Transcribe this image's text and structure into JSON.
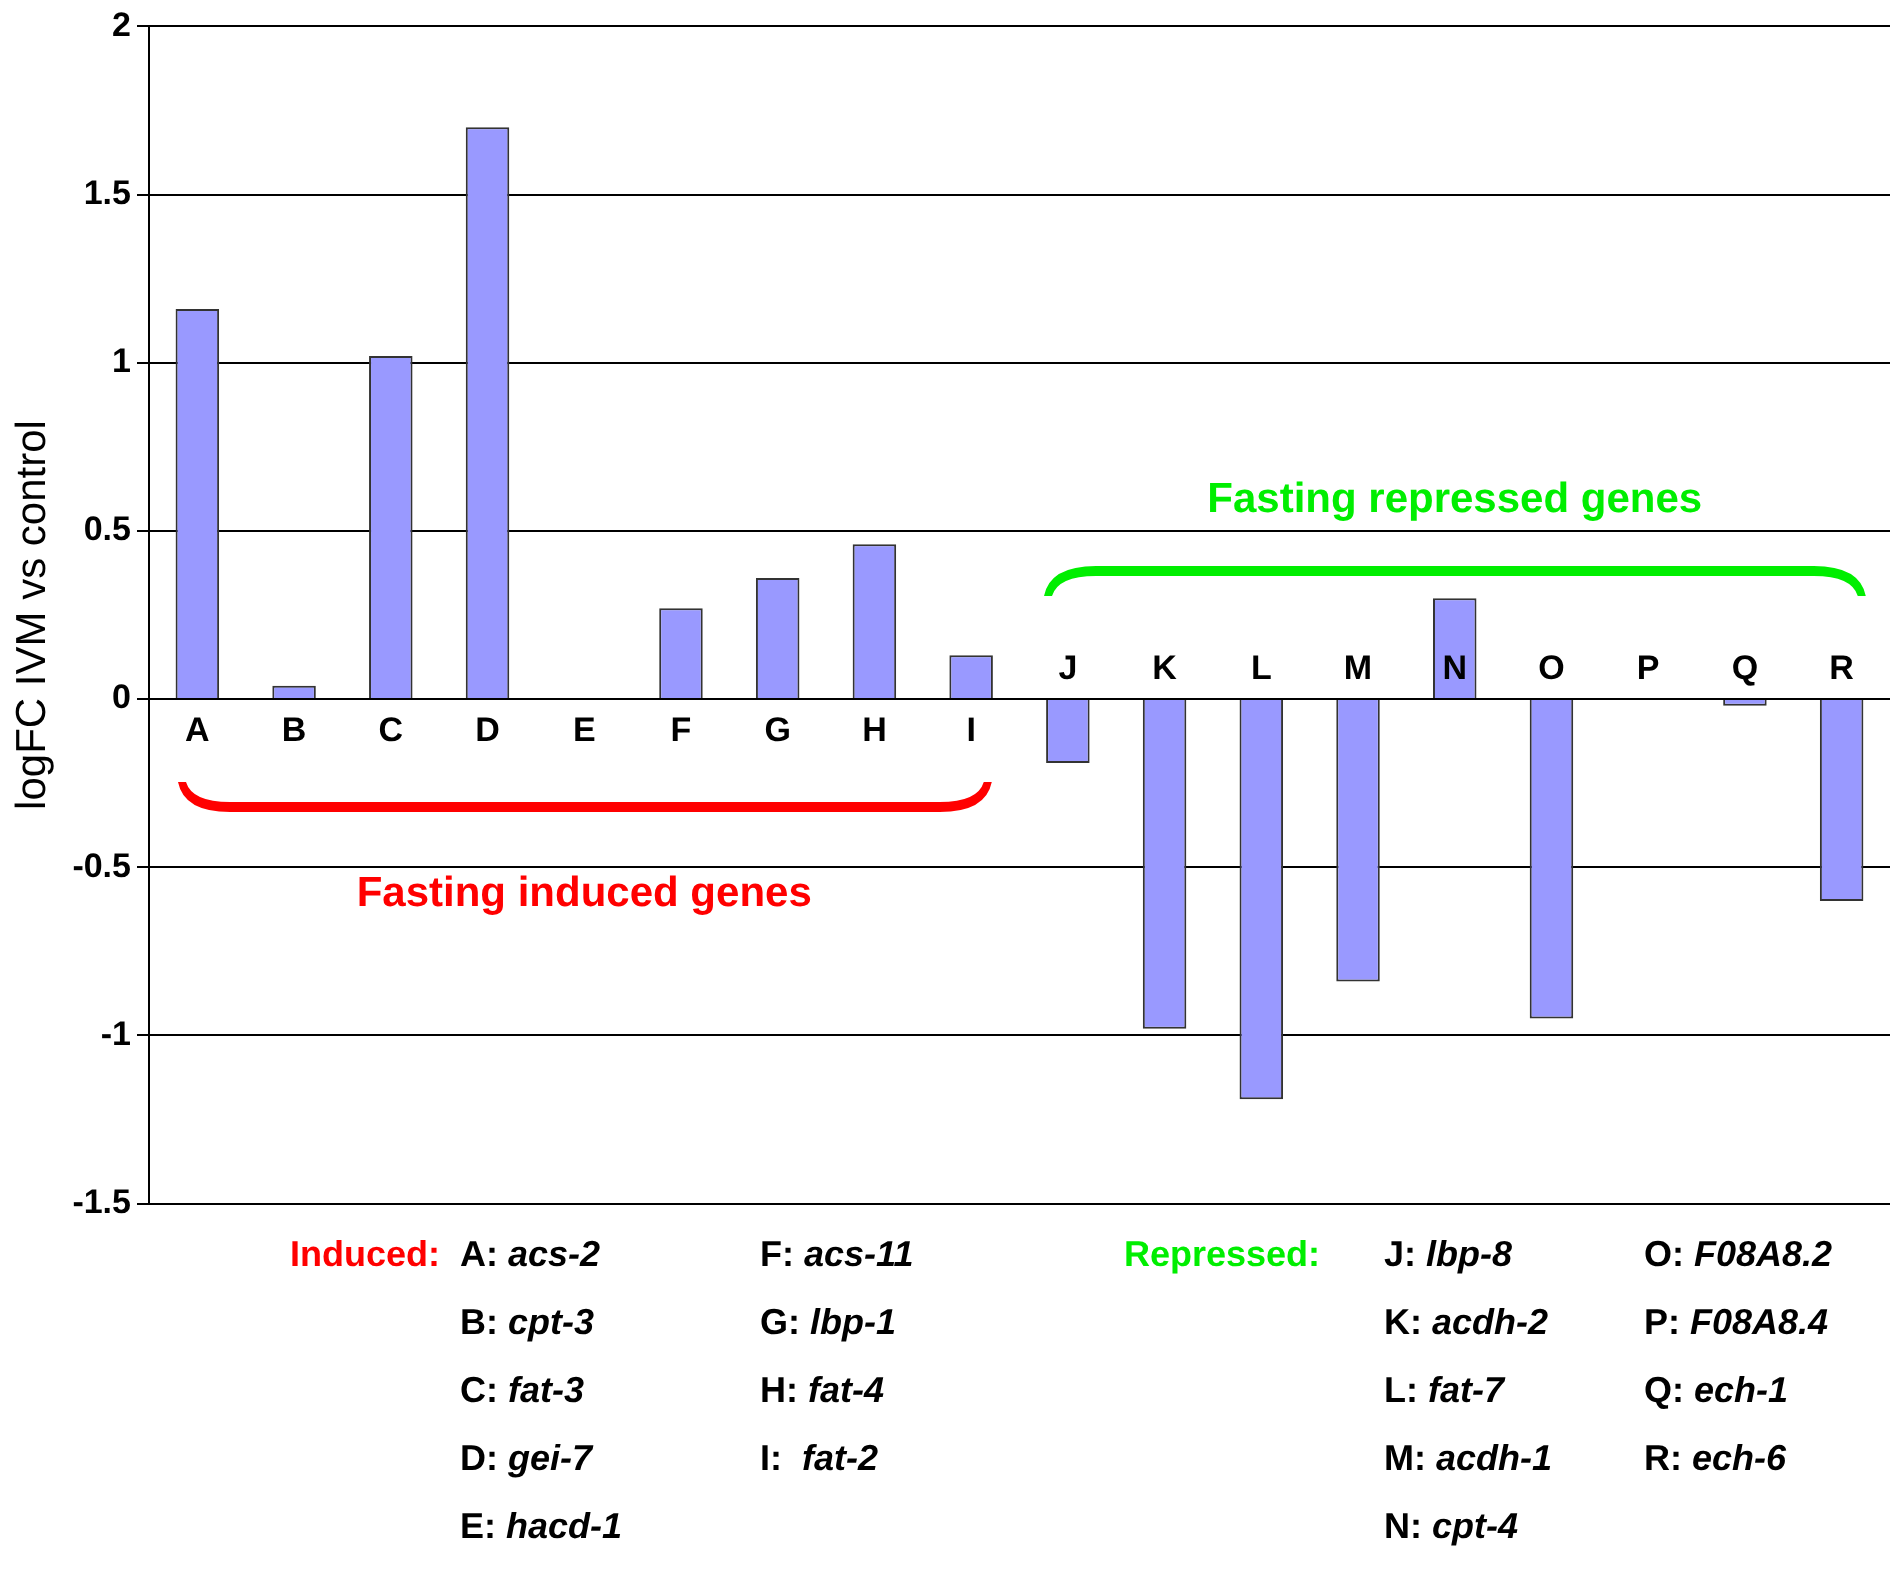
{
  "chart_data": {
    "type": "bar",
    "ylabel": "logFC IVM vs control",
    "categories": [
      "A",
      "B",
      "C",
      "D",
      "E",
      "F",
      "G",
      "H",
      "I",
      "J",
      "K",
      "L",
      "M",
      "N",
      "O",
      "P",
      "Q",
      "R"
    ],
    "series": [
      {
        "color": "#9999ff",
        "values": [
          1.16,
          0.04,
          1.02,
          1.7,
          null,
          0.27,
          0.36,
          0.46,
          0.13,
          -0.19,
          -0.98,
          -1.19,
          -0.84,
          0.3,
          -0.95,
          null,
          -0.02,
          -0.6
        ]
      }
    ],
    "ylim": [
      -1.5,
      2
    ],
    "yticks": [
      -1.5,
      -1,
      -0.5,
      0,
      0.5,
      1,
      1.5,
      2
    ],
    "grid": "y",
    "legend": false,
    "annotations": [
      "Fasting induced genes",
      "Fasting repressed genes",
      "Induced:",
      "A: acs-2",
      "B: cpt-3",
      "C: fat-3",
      "D: gei-7",
      "E: hacd-1",
      "F: acs-11",
      "G: lbp-1",
      "H: fat-4",
      "I:  fat-2",
      "Repressed:",
      "J: lbp-8",
      "K: acdh-2",
      "L: fat-7",
      "M: acdh-1",
      "N: cpt-4",
      "O: F08A8.2",
      "P: F08A8.4",
      "Q: ech-1",
      "R: ech-6"
    ]
  }
}
